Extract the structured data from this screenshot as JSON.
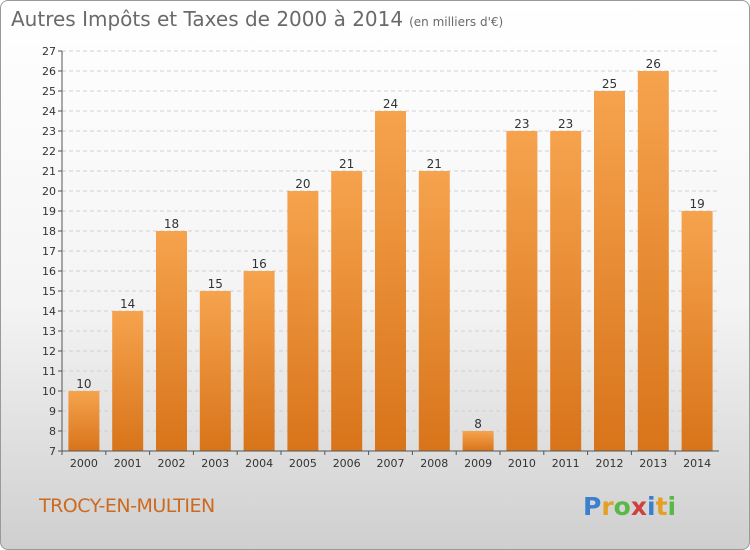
{
  "header": {
    "title": "Autres Impôts et Taxes de 2000 à 2014",
    "subtitle": "(en milliers d'€)"
  },
  "footer": {
    "commune": "TROCY-EN-MULTIEN",
    "logo_text": "Proxiti"
  },
  "colors": {
    "bar_top": "#f6a34e",
    "bar_bottom": "#d8741a",
    "accent": "#cc6a20"
  },
  "chart_data": {
    "type": "bar",
    "title": "Autres Impôts et Taxes de 2000 à 2014",
    "subtitle": "(en milliers d'€)",
    "categories": [
      "2000",
      "2001",
      "2002",
      "2003",
      "2004",
      "2005",
      "2006",
      "2007",
      "2008",
      "2009",
      "2010",
      "2011",
      "2012",
      "2013",
      "2014"
    ],
    "values": [
      10,
      14,
      18,
      15,
      16,
      20,
      21,
      24,
      21,
      8,
      23,
      23,
      25,
      26,
      19
    ],
    "ylim": [
      7,
      27
    ],
    "yticks": [
      7,
      8,
      9,
      10,
      11,
      12,
      13,
      14,
      15,
      16,
      17,
      18,
      19,
      20,
      21,
      22,
      23,
      24,
      25,
      26,
      27
    ],
    "grid": true,
    "data_labels": true
  }
}
